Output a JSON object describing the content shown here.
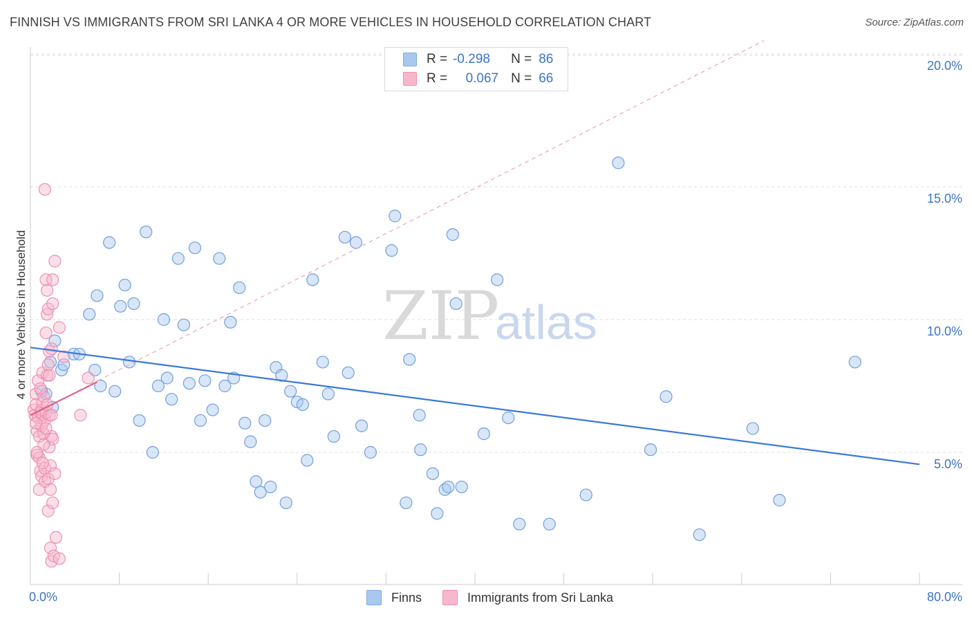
{
  "title": "FINNISH VS IMMIGRANTS FROM SRI LANKA 4 OR MORE VEHICLES IN HOUSEHOLD CORRELATION CHART",
  "source": "Source: ZipAtlas.com",
  "watermark": {
    "zip": "ZIP",
    "atlas": "atlas"
  },
  "legend": {
    "rows": [
      {
        "r_label": "R =",
        "r_value": "-0.298",
        "n_label": "N =",
        "n_value": "86",
        "color": "#a9c8f0",
        "border": "#7fa9e0"
      },
      {
        "r_label": "R =",
        "r_value": "0.067",
        "n_label": "N =",
        "n_value": "66",
        "color": "#f7b8cb",
        "border": "#ec8fae"
      }
    ]
  },
  "bottom_legend": [
    {
      "label": "Finns",
      "color": "#a9c8f0",
      "border": "#7fa9e0"
    },
    {
      "label": "Immigrants from Sri Lanka",
      "color": "#f7b8cb",
      "border": "#ec8fae"
    }
  ],
  "chart_data": {
    "type": "scatter",
    "title": "FINNISH VS IMMIGRANTS FROM SRI LANKA 4 OR MORE VEHICLES IN HOUSEHOLD CORRELATION CHART",
    "xlabel": "",
    "ylabel": "4 or more Vehicles in Household",
    "xlim": [
      0,
      80
    ],
    "ylim": [
      0,
      21
    ],
    "x_tick_labels": [
      "0.0%",
      "80.0%"
    ],
    "y_ticks": [
      5,
      10,
      15,
      20
    ],
    "y_tick_labels": [
      "5.0%",
      "10.0%",
      "15.0%",
      "20.0%"
    ],
    "grid": true,
    "series": [
      {
        "name": "Finns",
        "color": "#a9c8f0",
        "stroke": "#6f9fdc",
        "trend": {
          "x": [
            0,
            80
          ],
          "y": [
            8.95,
            4.55
          ],
          "color": "#3b78d8"
        },
        "points": [
          [
            1.4,
            7.2
          ],
          [
            2.2,
            9.2
          ],
          [
            1.8,
            8.4
          ],
          [
            2.8,
            8.1
          ],
          [
            3.0,
            8.3
          ],
          [
            3.9,
            8.7
          ],
          [
            4.4,
            8.7
          ],
          [
            5.3,
            10.2
          ],
          [
            6.0,
            10.9
          ],
          [
            5.8,
            8.1
          ],
          [
            6.3,
            7.5
          ],
          [
            7.1,
            12.9
          ],
          [
            7.6,
            7.3
          ],
          [
            8.1,
            10.5
          ],
          [
            8.5,
            11.3
          ],
          [
            8.9,
            8.4
          ],
          [
            9.3,
            10.6
          ],
          [
            9.8,
            6.2
          ],
          [
            10.4,
            13.3
          ],
          [
            11.0,
            5.0
          ],
          [
            11.5,
            7.5
          ],
          [
            12.0,
            10.0
          ],
          [
            12.3,
            7.8
          ],
          [
            12.7,
            7.0
          ],
          [
            13.3,
            12.3
          ],
          [
            13.8,
            9.8
          ],
          [
            14.3,
            7.6
          ],
          [
            14.8,
            12.7
          ],
          [
            15.3,
            6.2
          ],
          [
            15.7,
            7.7
          ],
          [
            16.4,
            6.6
          ],
          [
            17.0,
            12.3
          ],
          [
            17.5,
            7.5
          ],
          [
            18.0,
            9.9
          ],
          [
            18.3,
            7.8
          ],
          [
            18.8,
            11.2
          ],
          [
            19.3,
            6.1
          ],
          [
            19.8,
            5.4
          ],
          [
            20.3,
            3.9
          ],
          [
            20.7,
            3.5
          ],
          [
            21.1,
            6.2
          ],
          [
            21.6,
            3.7
          ],
          [
            22.1,
            8.2
          ],
          [
            22.6,
            7.9
          ],
          [
            23.0,
            3.1
          ],
          [
            23.4,
            7.3
          ],
          [
            24.0,
            6.9
          ],
          [
            24.5,
            6.8
          ],
          [
            24.9,
            4.7
          ],
          [
            25.4,
            11.5
          ],
          [
            26.3,
            8.4
          ],
          [
            26.8,
            7.2
          ],
          [
            27.3,
            5.6
          ],
          [
            28.3,
            13.1
          ],
          [
            28.6,
            8.0
          ],
          [
            29.3,
            12.9
          ],
          [
            29.8,
            6.0
          ],
          [
            30.6,
            5.0
          ],
          [
            32.5,
            12.6
          ],
          [
            32.8,
            13.9
          ],
          [
            33.8,
            3.1
          ],
          [
            34.1,
            8.5
          ],
          [
            35.0,
            6.4
          ],
          [
            35.1,
            5.1
          ],
          [
            36.2,
            4.2
          ],
          [
            36.6,
            2.7
          ],
          [
            37.3,
            3.6
          ],
          [
            37.6,
            3.7
          ],
          [
            38.3,
            10.6
          ],
          [
            38.0,
            13.2
          ],
          [
            38.8,
            3.7
          ],
          [
            40.8,
            5.7
          ],
          [
            42.0,
            11.5
          ],
          [
            43.0,
            6.3
          ],
          [
            44.0,
            2.3
          ],
          [
            46.7,
            2.3
          ],
          [
            50.0,
            3.4
          ],
          [
            52.9,
            15.9
          ],
          [
            55.8,
            5.1
          ],
          [
            57.2,
            7.1
          ],
          [
            60.2,
            1.9
          ],
          [
            65.0,
            5.9
          ],
          [
            67.4,
            3.2
          ],
          [
            74.2,
            8.4
          ],
          [
            1.0,
            7.3
          ],
          [
            2.0,
            6.7
          ]
        ]
      },
      {
        "name": "Immigrants from Sri Lanka",
        "color": "#f7b8cb",
        "stroke": "#ec8fae",
        "trend": {
          "x": [
            0,
            6.0
          ],
          "y": [
            6.4,
            7.65
          ],
          "color": "#e0608a"
        },
        "points": [
          [
            0.3,
            6.6
          ],
          [
            0.4,
            6.4
          ],
          [
            0.5,
            7.2
          ],
          [
            0.5,
            6.8
          ],
          [
            0.6,
            5.8
          ],
          [
            0.6,
            4.9
          ],
          [
            0.7,
            6.3
          ],
          [
            0.7,
            7.7
          ],
          [
            0.8,
            5.6
          ],
          [
            0.8,
            4.8
          ],
          [
            0.9,
            4.3
          ],
          [
            0.9,
            6.5
          ],
          [
            1.0,
            6.6
          ],
          [
            1.0,
            6.0
          ],
          [
            1.0,
            4.1
          ],
          [
            1.1,
            8.0
          ],
          [
            1.1,
            6.4
          ],
          [
            1.1,
            6.9
          ],
          [
            1.2,
            7.1
          ],
          [
            1.2,
            5.7
          ],
          [
            1.3,
            6.2
          ],
          [
            1.3,
            4.4
          ],
          [
            1.3,
            3.9
          ],
          [
            1.4,
            9.5
          ],
          [
            1.4,
            11.5
          ],
          [
            1.4,
            6.5
          ],
          [
            1.5,
            10.2
          ],
          [
            1.5,
            11.1
          ],
          [
            1.5,
            7.9
          ],
          [
            1.6,
            8.3
          ],
          [
            1.6,
            10.4
          ],
          [
            1.6,
            4.0
          ],
          [
            1.6,
            2.8
          ],
          [
            1.7,
            8.8
          ],
          [
            1.7,
            7.9
          ],
          [
            1.7,
            6.4
          ],
          [
            1.7,
            5.2
          ],
          [
            1.8,
            4.5
          ],
          [
            1.8,
            3.6
          ],
          [
            1.8,
            1.4
          ],
          [
            1.9,
            8.9
          ],
          [
            1.9,
            6.4
          ],
          [
            1.9,
            5.6
          ],
          [
            1.9,
            0.9
          ],
          [
            2.0,
            11.5
          ],
          [
            2.0,
            10.6
          ],
          [
            2.0,
            5.5
          ],
          [
            2.0,
            3.1
          ],
          [
            2.1,
            1.1
          ],
          [
            2.2,
            12.2
          ],
          [
            2.2,
            4.2
          ],
          [
            2.3,
            1.8
          ],
          [
            2.6,
            9.7
          ],
          [
            2.6,
            1.0
          ],
          [
            3.0,
            8.6
          ],
          [
            4.5,
            6.4
          ],
          [
            5.2,
            7.8
          ],
          [
            1.3,
            14.9
          ],
          [
            0.5,
            6.1
          ],
          [
            0.8,
            3.6
          ],
          [
            1.2,
            5.3
          ],
          [
            0.9,
            7.4
          ],
          [
            1.5,
            6.8
          ],
          [
            1.1,
            4.6
          ],
          [
            0.6,
            5.0
          ],
          [
            1.4,
            5.9
          ]
        ]
      }
    ],
    "reference_line": {
      "x": [
        0,
        66
      ],
      "y": [
        6.4,
        20.5
      ],
      "style": "dashed",
      "color": "#e8a0b8"
    }
  }
}
